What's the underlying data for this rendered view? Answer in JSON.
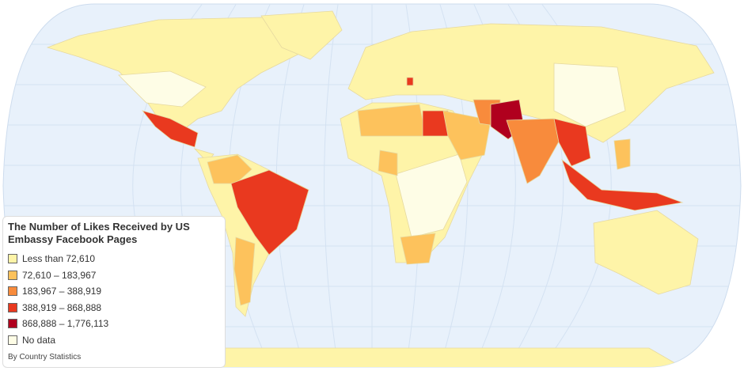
{
  "map": {
    "title": "The Number of Likes Received by US Embassy Facebook Pages",
    "legend": [
      {
        "label": "Less than 72,610",
        "color": "#fef4a8"
      },
      {
        "label": "72,610 – 183,967",
        "color": "#fdc25c"
      },
      {
        "label": "183,967 – 388,919",
        "color": "#f88b3c"
      },
      {
        "label": "388,919 – 868,888",
        "color": "#e9391f"
      },
      {
        "label": "868,888 – 1,776,113",
        "color": "#b0001e"
      },
      {
        "label": "No data",
        "color": "#fefde6"
      }
    ],
    "source": "By Country Statistics"
  }
}
